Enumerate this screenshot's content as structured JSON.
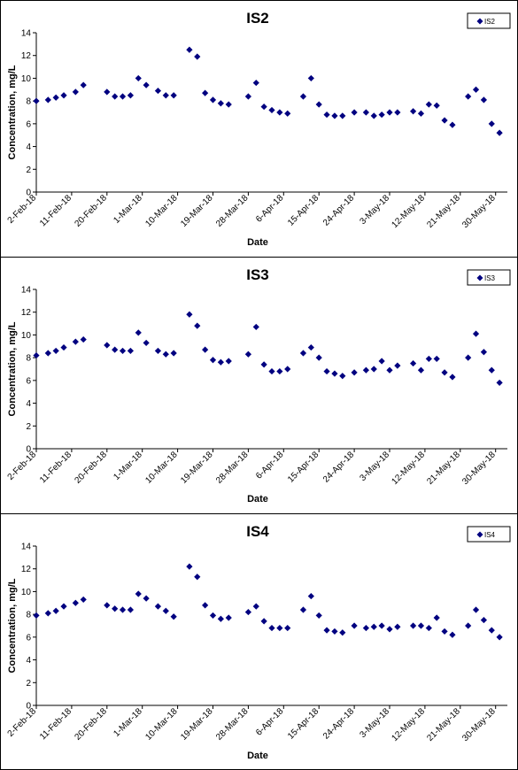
{
  "chart_data": [
    {
      "type": "scatter",
      "title": "IS2",
      "xlabel": "Date",
      "ylabel": "Concentration, mg/L",
      "ylim": [
        0,
        14
      ],
      "yticks": [
        0,
        2,
        4,
        6,
        8,
        10,
        12,
        14
      ],
      "xlim": [
        "2018-02-02",
        "2018-06-02"
      ],
      "xticks": [
        "2-Feb-18",
        "11-Feb-18",
        "20-Feb-18",
        "1-Mar-18",
        "10-Mar-18",
        "19-Mar-18",
        "28-Mar-18",
        "6-Apr-18",
        "15-Apr-18",
        "24-Apr-18",
        "3-May-18",
        "12-May-18",
        "21-May-18",
        "30-May-18"
      ],
      "grid": false,
      "legend": "top-right",
      "marker_color": "#000080",
      "series": [
        {
          "name": "IS2",
          "points": [
            {
              "x": "2018-02-02",
              "y": 8.0
            },
            {
              "x": "2018-02-05",
              "y": 8.1
            },
            {
              "x": "2018-02-07",
              "y": 8.3
            },
            {
              "x": "2018-02-09",
              "y": 8.5
            },
            {
              "x": "2018-02-12",
              "y": 8.8
            },
            {
              "x": "2018-02-14",
              "y": 9.4
            },
            {
              "x": "2018-02-20",
              "y": 8.8
            },
            {
              "x": "2018-02-22",
              "y": 8.4
            },
            {
              "x": "2018-02-24",
              "y": 8.4
            },
            {
              "x": "2018-02-26",
              "y": 8.5
            },
            {
              "x": "2018-02-28",
              "y": 10.0
            },
            {
              "x": "2018-03-02",
              "y": 9.4
            },
            {
              "x": "2018-03-05",
              "y": 8.9
            },
            {
              "x": "2018-03-07",
              "y": 8.5
            },
            {
              "x": "2018-03-09",
              "y": 8.5
            },
            {
              "x": "2018-03-13",
              "y": 12.5
            },
            {
              "x": "2018-03-15",
              "y": 11.9
            },
            {
              "x": "2018-03-17",
              "y": 8.7
            },
            {
              "x": "2018-03-19",
              "y": 8.1
            },
            {
              "x": "2018-03-21",
              "y": 7.8
            },
            {
              "x": "2018-03-23",
              "y": 7.7
            },
            {
              "x": "2018-03-28",
              "y": 8.4
            },
            {
              "x": "2018-03-30",
              "y": 9.6
            },
            {
              "x": "2018-04-01",
              "y": 7.5
            },
            {
              "x": "2018-04-03",
              "y": 7.2
            },
            {
              "x": "2018-04-05",
              "y": 7.0
            },
            {
              "x": "2018-04-07",
              "y": 6.9
            },
            {
              "x": "2018-04-11",
              "y": 8.4
            },
            {
              "x": "2018-04-13",
              "y": 10.0
            },
            {
              "x": "2018-04-15",
              "y": 7.7
            },
            {
              "x": "2018-04-17",
              "y": 6.8
            },
            {
              "x": "2018-04-19",
              "y": 6.7
            },
            {
              "x": "2018-04-21",
              "y": 6.7
            },
            {
              "x": "2018-04-24",
              "y": 7.0
            },
            {
              "x": "2018-04-27",
              "y": 7.0
            },
            {
              "x": "2018-04-29",
              "y": 6.7
            },
            {
              "x": "2018-05-01",
              "y": 6.8
            },
            {
              "x": "2018-05-03",
              "y": 7.0
            },
            {
              "x": "2018-05-05",
              "y": 7.0
            },
            {
              "x": "2018-05-09",
              "y": 7.1
            },
            {
              "x": "2018-05-11",
              "y": 6.9
            },
            {
              "x": "2018-05-13",
              "y": 7.7
            },
            {
              "x": "2018-05-15",
              "y": 7.6
            },
            {
              "x": "2018-05-17",
              "y": 6.3
            },
            {
              "x": "2018-05-19",
              "y": 5.9
            },
            {
              "x": "2018-05-23",
              "y": 8.4
            },
            {
              "x": "2018-05-25",
              "y": 9.0
            },
            {
              "x": "2018-05-27",
              "y": 8.1
            },
            {
              "x": "2018-05-29",
              "y": 6.0
            },
            {
              "x": "2018-05-31",
              "y": 5.2
            }
          ]
        }
      ]
    },
    {
      "type": "scatter",
      "title": "IS3",
      "xlabel": "Date",
      "ylabel": "Concentration, mg/L",
      "ylim": [
        0,
        14
      ],
      "yticks": [
        0,
        2,
        4,
        6,
        8,
        10,
        12,
        14
      ],
      "xlim": [
        "2018-02-02",
        "2018-06-02"
      ],
      "xticks": [
        "2-Feb-18",
        "11-Feb-18",
        "20-Feb-18",
        "1-Mar-18",
        "10-Mar-18",
        "19-Mar-18",
        "28-Mar-18",
        "6-Apr-18",
        "15-Apr-18",
        "24-Apr-18",
        "3-May-18",
        "12-May-18",
        "21-May-18",
        "30-May-18"
      ],
      "grid": false,
      "legend": "top-right",
      "marker_color": "#000080",
      "series": [
        {
          "name": "IS3",
          "points": [
            {
              "x": "2018-02-02",
              "y": 8.2
            },
            {
              "x": "2018-02-05",
              "y": 8.4
            },
            {
              "x": "2018-02-07",
              "y": 8.6
            },
            {
              "x": "2018-02-09",
              "y": 8.9
            },
            {
              "x": "2018-02-12",
              "y": 9.4
            },
            {
              "x": "2018-02-14",
              "y": 9.6
            },
            {
              "x": "2018-02-20",
              "y": 9.1
            },
            {
              "x": "2018-02-22",
              "y": 8.7
            },
            {
              "x": "2018-02-24",
              "y": 8.6
            },
            {
              "x": "2018-02-26",
              "y": 8.6
            },
            {
              "x": "2018-02-28",
              "y": 10.2
            },
            {
              "x": "2018-03-02",
              "y": 9.3
            },
            {
              "x": "2018-03-05",
              "y": 8.6
            },
            {
              "x": "2018-03-07",
              "y": 8.3
            },
            {
              "x": "2018-03-09",
              "y": 8.4
            },
            {
              "x": "2018-03-13",
              "y": 11.8
            },
            {
              "x": "2018-03-15",
              "y": 10.8
            },
            {
              "x": "2018-03-17",
              "y": 8.7
            },
            {
              "x": "2018-03-19",
              "y": 7.8
            },
            {
              "x": "2018-03-21",
              "y": 7.6
            },
            {
              "x": "2018-03-23",
              "y": 7.7
            },
            {
              "x": "2018-03-28",
              "y": 8.3
            },
            {
              "x": "2018-03-30",
              "y": 10.7
            },
            {
              "x": "2018-04-01",
              "y": 7.4
            },
            {
              "x": "2018-04-03",
              "y": 6.8
            },
            {
              "x": "2018-04-05",
              "y": 6.8
            },
            {
              "x": "2018-04-07",
              "y": 7.0
            },
            {
              "x": "2018-04-11",
              "y": 8.4
            },
            {
              "x": "2018-04-13",
              "y": 8.9
            },
            {
              "x": "2018-04-15",
              "y": 8.0
            },
            {
              "x": "2018-04-17",
              "y": 6.8
            },
            {
              "x": "2018-04-19",
              "y": 6.6
            },
            {
              "x": "2018-04-21",
              "y": 6.4
            },
            {
              "x": "2018-04-24",
              "y": 6.7
            },
            {
              "x": "2018-04-27",
              "y": 6.9
            },
            {
              "x": "2018-04-29",
              "y": 7.0
            },
            {
              "x": "2018-05-01",
              "y": 7.7
            },
            {
              "x": "2018-05-03",
              "y": 6.9
            },
            {
              "x": "2018-05-05",
              "y": 7.3
            },
            {
              "x": "2018-05-09",
              "y": 7.5
            },
            {
              "x": "2018-05-11",
              "y": 6.9
            },
            {
              "x": "2018-05-13",
              "y": 7.9
            },
            {
              "x": "2018-05-15",
              "y": 7.9
            },
            {
              "x": "2018-05-17",
              "y": 6.7
            },
            {
              "x": "2018-05-19",
              "y": 6.3
            },
            {
              "x": "2018-05-23",
              "y": 8.0
            },
            {
              "x": "2018-05-25",
              "y": 10.1
            },
            {
              "x": "2018-05-27",
              "y": 8.5
            },
            {
              "x": "2018-05-29",
              "y": 6.9
            },
            {
              "x": "2018-05-31",
              "y": 5.8
            }
          ]
        }
      ]
    },
    {
      "type": "scatter",
      "title": "IS4",
      "xlabel": "Date",
      "ylabel": "Concentration, mg/L",
      "ylim": [
        0,
        14
      ],
      "yticks": [
        0,
        2,
        4,
        6,
        8,
        10,
        12,
        14
      ],
      "xlim": [
        "2018-02-02",
        "2018-06-02"
      ],
      "xticks": [
        "2-Feb-18",
        "11-Feb-18",
        "20-Feb-18",
        "1-Mar-18",
        "10-Mar-18",
        "19-Mar-18",
        "28-Mar-18",
        "6-Apr-18",
        "15-Apr-18",
        "24-Apr-18",
        "3-May-18",
        "12-May-18",
        "21-May-18",
        "30-May-18"
      ],
      "grid": false,
      "legend": "top-right",
      "marker_color": "#000080",
      "series": [
        {
          "name": "IS4",
          "points": [
            {
              "x": "2018-02-02",
              "y": 7.9
            },
            {
              "x": "2018-02-05",
              "y": 8.1
            },
            {
              "x": "2018-02-07",
              "y": 8.3
            },
            {
              "x": "2018-02-09",
              "y": 8.7
            },
            {
              "x": "2018-02-12",
              "y": 9.0
            },
            {
              "x": "2018-02-14",
              "y": 9.3
            },
            {
              "x": "2018-02-20",
              "y": 8.8
            },
            {
              "x": "2018-02-22",
              "y": 8.5
            },
            {
              "x": "2018-02-24",
              "y": 8.4
            },
            {
              "x": "2018-02-26",
              "y": 8.4
            },
            {
              "x": "2018-02-28",
              "y": 9.8
            },
            {
              "x": "2018-03-02",
              "y": 9.4
            },
            {
              "x": "2018-03-05",
              "y": 8.7
            },
            {
              "x": "2018-03-07",
              "y": 8.3
            },
            {
              "x": "2018-03-09",
              "y": 7.8
            },
            {
              "x": "2018-03-13",
              "y": 12.2
            },
            {
              "x": "2018-03-15",
              "y": 11.3
            },
            {
              "x": "2018-03-17",
              "y": 8.8
            },
            {
              "x": "2018-03-19",
              "y": 7.9
            },
            {
              "x": "2018-03-21",
              "y": 7.6
            },
            {
              "x": "2018-03-23",
              "y": 7.7
            },
            {
              "x": "2018-03-28",
              "y": 8.2
            },
            {
              "x": "2018-03-30",
              "y": 8.7
            },
            {
              "x": "2018-04-01",
              "y": 7.4
            },
            {
              "x": "2018-04-03",
              "y": 6.8
            },
            {
              "x": "2018-04-05",
              "y": 6.8
            },
            {
              "x": "2018-04-07",
              "y": 6.8
            },
            {
              "x": "2018-04-11",
              "y": 8.4
            },
            {
              "x": "2018-04-13",
              "y": 9.6
            },
            {
              "x": "2018-04-15",
              "y": 7.9
            },
            {
              "x": "2018-04-17",
              "y": 6.6
            },
            {
              "x": "2018-04-19",
              "y": 6.5
            },
            {
              "x": "2018-04-21",
              "y": 6.4
            },
            {
              "x": "2018-04-24",
              "y": 7.0
            },
            {
              "x": "2018-04-27",
              "y": 6.8
            },
            {
              "x": "2018-04-29",
              "y": 6.9
            },
            {
              "x": "2018-05-01",
              "y": 7.0
            },
            {
              "x": "2018-05-03",
              "y": 6.7
            },
            {
              "x": "2018-05-05",
              "y": 6.9
            },
            {
              "x": "2018-05-09",
              "y": 7.0
            },
            {
              "x": "2018-05-11",
              "y": 7.0
            },
            {
              "x": "2018-05-13",
              "y": 6.8
            },
            {
              "x": "2018-05-15",
              "y": 7.7
            },
            {
              "x": "2018-05-17",
              "y": 6.5
            },
            {
              "x": "2018-05-19",
              "y": 6.2
            },
            {
              "x": "2018-05-23",
              "y": 7.0
            },
            {
              "x": "2018-05-25",
              "y": 8.4
            },
            {
              "x": "2018-05-27",
              "y": 7.5
            },
            {
              "x": "2018-05-29",
              "y": 6.6
            },
            {
              "x": "2018-05-31",
              "y": 6.0
            }
          ]
        }
      ]
    }
  ]
}
